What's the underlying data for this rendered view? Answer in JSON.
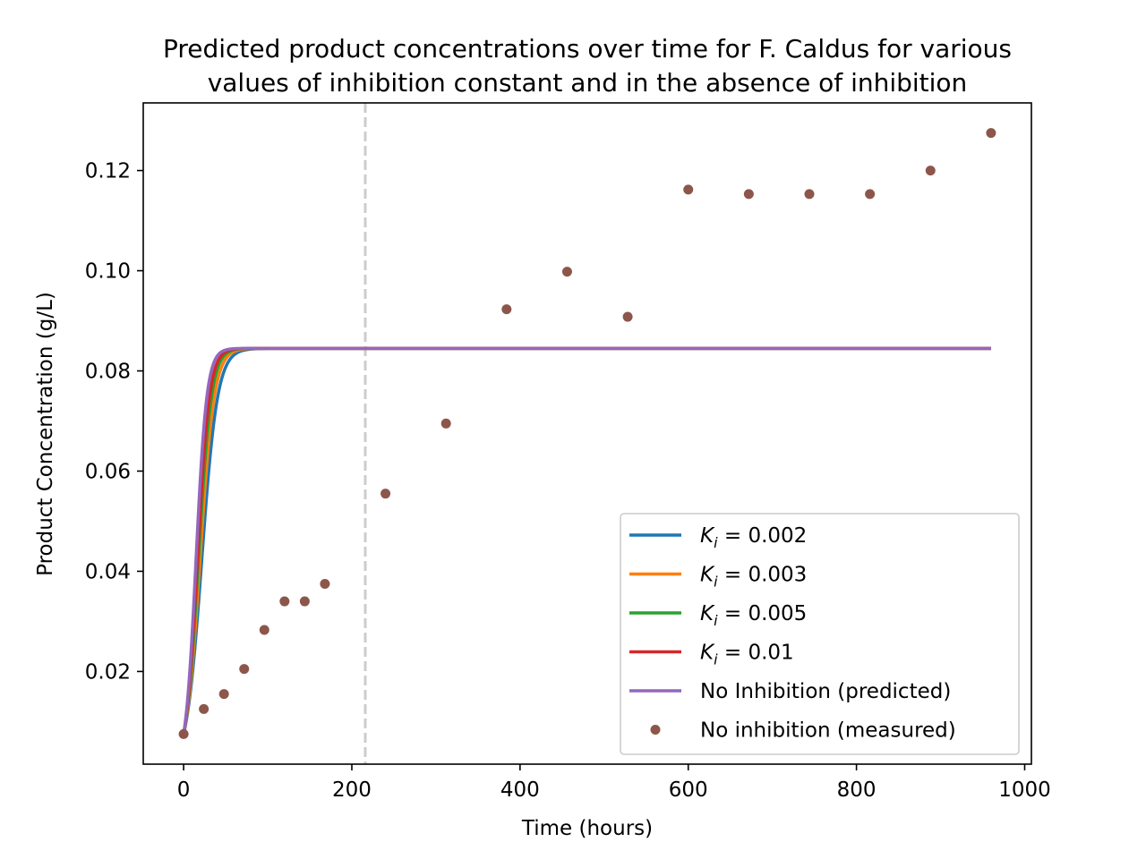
{
  "chart_data": {
    "type": "line",
    "title": "Predicted product concentrations over time for F. Caldus for various",
    "subtitle": "values of inhibition constant and in the absence of inhibition",
    "xlabel": "Time (hours)",
    "ylabel": "Product Concentration (g/L)",
    "xlim": [
      -48,
      1008
    ],
    "ylim": [
      0.0015,
      0.1335
    ],
    "xticks": [
      0,
      200,
      400,
      600,
      800,
      1000
    ],
    "xtick_labels": [
      "0",
      "200",
      "400",
      "600",
      "800",
      "1000"
    ],
    "yticks": [
      0.02,
      0.04,
      0.06,
      0.08,
      0.1,
      0.12
    ],
    "ytick_labels": [
      "0.02",
      "0.04",
      "0.06",
      "0.08",
      "0.10",
      "0.12"
    ],
    "grid": false,
    "legend_position": "lower right",
    "vline": {
      "x": 216,
      "style": "dashed",
      "color": "#cccccc"
    },
    "model": {
      "y0": 0.0075,
      "ymax": 0.0845,
      "x_end": 960
    },
    "series": [
      {
        "name": "K_i = 0.002",
        "kind": "line",
        "color": "#1f77b4",
        "growth_rate": 0.108,
        "label_prefix": "K",
        "label_sub": "i",
        "label_rest": " = 0.002"
      },
      {
        "name": "K_i = 0.003",
        "kind": "line",
        "color": "#ff7f0e",
        "growth_rate": 0.12,
        "label_prefix": "K",
        "label_sub": "i",
        "label_rest": " = 0.003"
      },
      {
        "name": "K_i = 0.005",
        "kind": "line",
        "color": "#2ca02c",
        "growth_rate": 0.132,
        "label_prefix": "K",
        "label_sub": "i",
        "label_rest": " = 0.005"
      },
      {
        "name": "K_i = 0.01",
        "kind": "line",
        "color": "#d62728",
        "growth_rate": 0.142,
        "label_prefix": "K",
        "label_sub": "i",
        "label_rest": " = 0.01"
      },
      {
        "name": "No Inhibition (predicted)",
        "kind": "line",
        "color": "#9467bd",
        "growth_rate": 0.158,
        "label_prefix": "No Inhibition (predicted)",
        "label_sub": "",
        "label_rest": ""
      },
      {
        "name": "No inhibition (measured)",
        "kind": "scatter",
        "color": "#8c564b",
        "label_prefix": "No inhibition (measured)",
        "label_sub": "",
        "label_rest": "",
        "x": [
          0,
          24,
          48,
          72,
          96,
          120,
          144,
          168,
          240,
          312,
          384,
          456,
          528,
          600,
          672,
          744,
          816,
          888,
          960
        ],
        "y": [
          0.0075,
          0.0125,
          0.0155,
          0.0205,
          0.0283,
          0.034,
          0.034,
          0.0375,
          0.0555,
          0.0695,
          0.0923,
          0.0998,
          0.0908,
          0.1162,
          0.1153,
          0.1153,
          0.1153,
          0.12,
          0.1275
        ]
      }
    ]
  }
}
